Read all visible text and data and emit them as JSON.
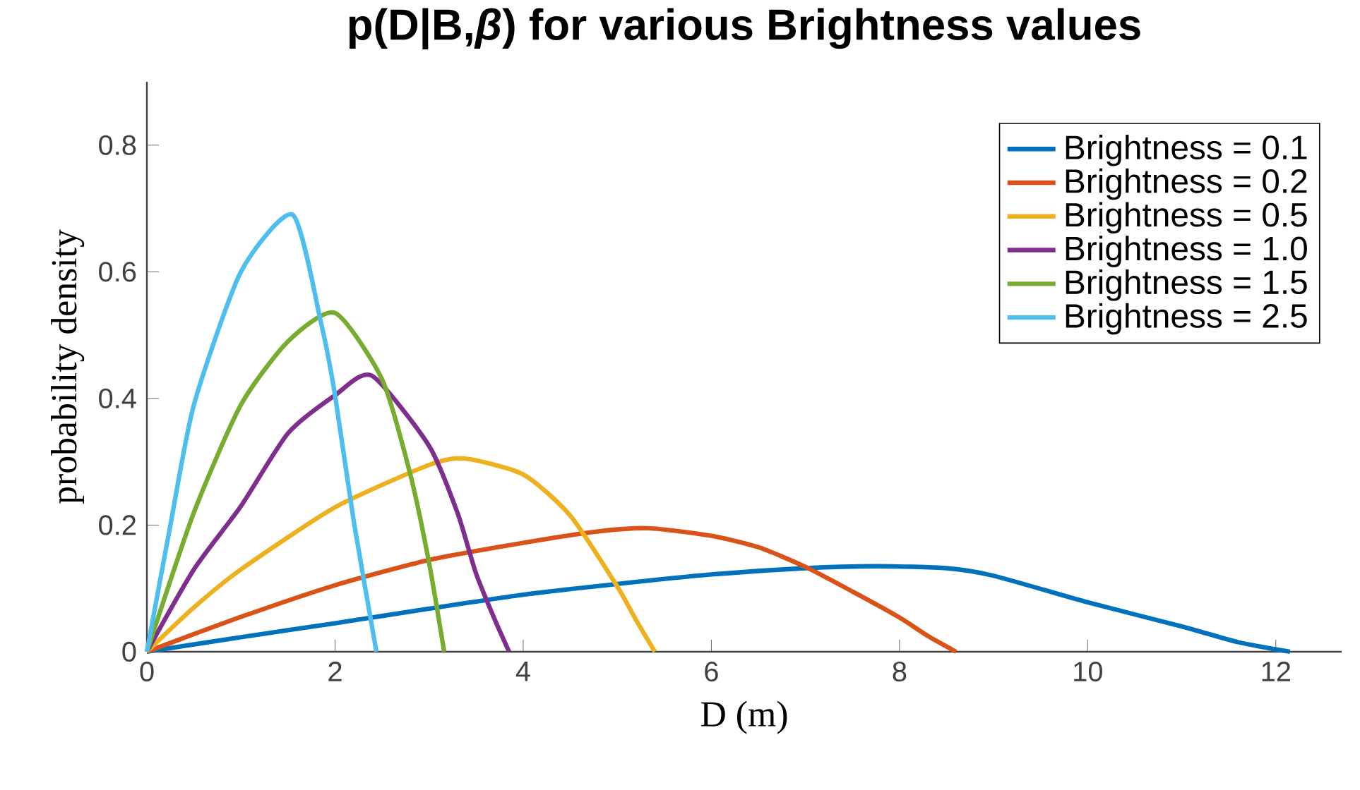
{
  "chart_data": {
    "type": "line",
    "title": "p(D|B,*β*) for various Brightness values",
    "xlabel": "D (m)",
    "ylabel": "probability density",
    "xlim": [
      0,
      12.7
    ],
    "ylim": [
      0,
      0.9
    ],
    "xticks": [
      0,
      2,
      4,
      6,
      8,
      10,
      12
    ],
    "yticks": [
      0,
      0.2,
      0.4,
      0.6,
      0.8
    ],
    "grid": false,
    "legend": "top right",
    "marker": "none",
    "line_style": "solid",
    "series": [
      {
        "name": "Brightness = 0.1",
        "color": "#0072bd",
        "x": [
          0,
          1,
          2,
          3,
          4,
          5,
          6,
          7,
          7.76,
          8.5,
          9,
          10,
          11,
          11.6,
          12.15
        ],
        "values": [
          0,
          0.023,
          0.045,
          0.068,
          0.09,
          0.107,
          0.122,
          0.132,
          0.135,
          0.132,
          0.12,
          0.078,
          0.04,
          0.015,
          0
        ]
      },
      {
        "name": "Brightness = 0.2",
        "color": "#d95319",
        "x": [
          0,
          1,
          2,
          3,
          4,
          4.8,
          5.33,
          6,
          6.5,
          7,
          7.5,
          8,
          8.3,
          8.6
        ],
        "values": [
          0,
          0.055,
          0.105,
          0.145,
          0.172,
          0.19,
          0.195,
          0.183,
          0.165,
          0.134,
          0.095,
          0.054,
          0.025,
          0
        ]
      },
      {
        "name": "Brightness = 0.5",
        "color": "#edb120",
        "x": [
          0,
          0.5,
          1,
          2,
          3,
          3.38,
          4,
          4.5,
          5,
          5.2,
          5.4
        ],
        "values": [
          0,
          0.07,
          0.13,
          0.228,
          0.295,
          0.305,
          0.28,
          0.215,
          0.103,
          0.05,
          0
        ]
      },
      {
        "name": "Brightness = 1.0",
        "color": "#7e2f8e",
        "x": [
          0,
          0.5,
          1,
          1.5,
          2,
          2.39,
          3,
          3.3,
          3.5,
          3.7,
          3.85
        ],
        "values": [
          0,
          0.13,
          0.23,
          0.345,
          0.405,
          0.436,
          0.325,
          0.22,
          0.123,
          0.05,
          0
        ]
      },
      {
        "name": "Brightness = 1.5",
        "color": "#77ac30",
        "x": [
          0,
          0.5,
          1,
          1.5,
          2,
          2.5,
          2.8,
          3,
          3.16
        ],
        "values": [
          0,
          0.22,
          0.39,
          0.49,
          0.535,
          0.43,
          0.28,
          0.14,
          0
        ]
      },
      {
        "name": "Brightness = 2.5",
        "color": "#4dbeee",
        "x": [
          0,
          0.25,
          0.5,
          1,
          1.55,
          1.85,
          2,
          2.2,
          2.44
        ],
        "values": [
          0,
          0.2,
          0.39,
          0.6,
          0.69,
          0.52,
          0.405,
          0.205,
          0
        ]
      }
    ]
  }
}
